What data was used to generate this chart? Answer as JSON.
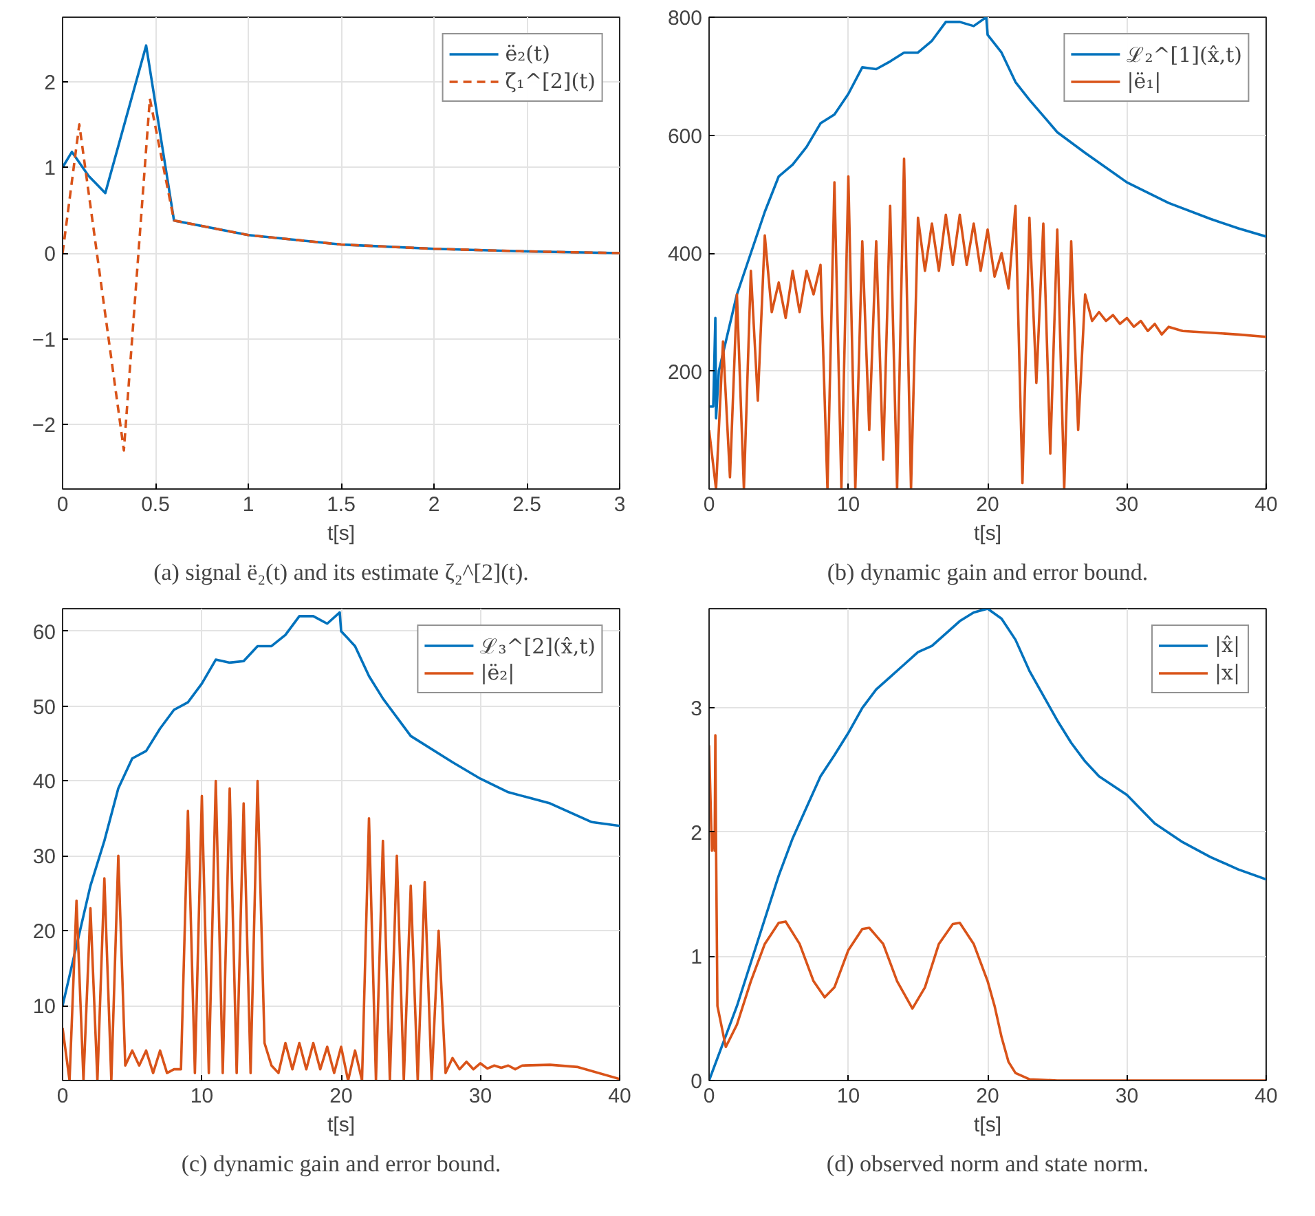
{
  "chart_data": [
    {
      "type": "line",
      "title": "(a) signal ë₂(t) and its estimate ζ₂^[2](t).",
      "xlabel": "t[s]",
      "xlim": [
        0,
        3
      ],
      "ylim": [
        -2.75,
        2.75
      ],
      "xticks": [
        0,
        0.5,
        1,
        1.5,
        2,
        2.5,
        3
      ],
      "yticks": [
        -2,
        -1,
        0,
        1,
        2
      ],
      "grid": true,
      "legend": "top right",
      "series": [
        {
          "name": "ë₂(t)",
          "color": "#0072bd",
          "line_style": "solid",
          "x": [
            0,
            0.05,
            0.14,
            0.23,
            0.45,
            0.6,
            1,
            1.5,
            2,
            2.5,
            3
          ],
          "values": [
            1.0,
            1.18,
            0.9,
            0.7,
            2.42,
            0.38,
            0.21,
            0.1,
            0.05,
            0.02,
            0.0
          ]
        },
        {
          "name": "ζ₁^[2](t)",
          "color": "#d95319",
          "line_style": "dashed",
          "x": [
            0,
            0.09,
            0.33,
            0.47,
            0.6,
            1,
            1.5,
            2,
            2.5,
            3
          ],
          "values": [
            0,
            1.5,
            -2.3,
            1.8,
            0.38,
            0.21,
            0.1,
            0.05,
            0.02,
            0.0
          ]
        }
      ]
    },
    {
      "type": "line",
      "title": "(b) dynamic gain and error bound.",
      "xlabel": "t[s]",
      "xlim": [
        0,
        40
      ],
      "ylim": [
        0,
        800
      ],
      "xticks": [
        0,
        10,
        20,
        30,
        40
      ],
      "yticks": [
        200,
        400,
        600,
        800
      ],
      "grid": true,
      "legend": "top right",
      "series": [
        {
          "name": "ℒ₂^[1](x̂,t)",
          "color": "#0072bd",
          "x": [
            0,
            0.3,
            0.45,
            0.5,
            0.7,
            2,
            3,
            4,
            5,
            6,
            7,
            8,
            9,
            10,
            11,
            12,
            13,
            14,
            15,
            16,
            17,
            18,
            19,
            19.9,
            20,
            21,
            22,
            23,
            25,
            27,
            30,
            33,
            36,
            38,
            40
          ],
          "values": [
            140,
            140,
            290,
            120,
            200,
            330,
            400,
            470,
            530,
            550,
            580,
            620,
            635,
            670,
            715,
            712,
            725,
            740,
            740,
            760,
            792,
            792,
            785,
            800,
            770,
            740,
            690,
            660,
            605,
            570,
            520,
            485,
            458,
            442,
            428
          ]
        },
        {
          "name": "|ë₁|",
          "color": "#d95319",
          "x": [
            0,
            0.5,
            1,
            1.5,
            2,
            2.5,
            3,
            3.5,
            4,
            4.5,
            5,
            5.5,
            6,
            6.5,
            7,
            7.5,
            8,
            8.5,
            9,
            9.5,
            10,
            10.5,
            11,
            11.5,
            12,
            12.5,
            13,
            13.5,
            14,
            14.5,
            15,
            15.5,
            16,
            16.5,
            17,
            17.5,
            18,
            18.5,
            19,
            19.5,
            20,
            20.5,
            21,
            21.5,
            22,
            22.5,
            23,
            23.5,
            24,
            24.5,
            25,
            25.5,
            26,
            26.5,
            27,
            27.5,
            28,
            28.5,
            29,
            29.5,
            30,
            30.5,
            31,
            31.5,
            32,
            32.5,
            33,
            34,
            36,
            38,
            40
          ],
          "values": [
            100,
            0,
            250,
            20,
            330,
            0,
            370,
            150,
            430,
            300,
            350,
            290,
            370,
            300,
            370,
            330,
            380,
            0,
            520,
            0,
            530,
            0,
            420,
            100,
            420,
            50,
            480,
            0,
            560,
            0,
            460,
            370,
            450,
            370,
            465,
            380,
            465,
            380,
            450,
            370,
            440,
            360,
            400,
            340,
            480,
            10,
            460,
            180,
            450,
            60,
            440,
            0,
            420,
            100,
            330,
            285,
            300,
            285,
            295,
            280,
            290,
            275,
            285,
            268,
            280,
            262,
            275,
            268,
            265,
            262,
            258
          ]
        }
      ]
    },
    {
      "type": "line",
      "title": "(c) dynamic gain and error bound.",
      "xlabel": "t[s]",
      "xlim": [
        0,
        40
      ],
      "ylim": [
        0,
        63
      ],
      "xticks": [
        0,
        10,
        20,
        30,
        40
      ],
      "yticks": [
        10,
        20,
        30,
        40,
        50,
        60
      ],
      "grid": true,
      "legend": "top right",
      "series": [
        {
          "name": "ℒ₃^[2](x̂,t)",
          "color": "#0072bd",
          "x": [
            0,
            0.5,
            1,
            2,
            3,
            4,
            5,
            6,
            7,
            8,
            9,
            10,
            11,
            12,
            13,
            14,
            15,
            16,
            17,
            18,
            19,
            19.9,
            20,
            21,
            22,
            23,
            25,
            28,
            30,
            32,
            35,
            38,
            40
          ],
          "values": [
            10,
            14,
            18,
            26,
            32,
            39,
            43,
            44,
            47,
            49.5,
            50.5,
            53,
            56.2,
            55.8,
            56,
            58,
            58,
            59.5,
            62,
            62,
            61,
            62.5,
            60,
            58,
            54,
            51,
            46,
            42.5,
            40.3,
            38.5,
            37,
            34.5,
            34
          ]
        },
        {
          "name": "|ë₂|",
          "color": "#d95319",
          "x": [
            0,
            0.5,
            1,
            1.5,
            2,
            2.5,
            3,
            3.5,
            4,
            4.5,
            5,
            5.5,
            6,
            6.5,
            7,
            7.5,
            8,
            8.5,
            9,
            9.5,
            10,
            10.5,
            11,
            11.5,
            12,
            12.5,
            13,
            13.5,
            14,
            14.5,
            15,
            15.5,
            16,
            16.5,
            17,
            17.5,
            18,
            18.5,
            19,
            19.5,
            20,
            20.5,
            21,
            21.5,
            22,
            22.5,
            23,
            23.5,
            24,
            24.5,
            25,
            25.5,
            26,
            26.5,
            27,
            27.5,
            28,
            28.5,
            29,
            29.5,
            30,
            30.5,
            31,
            31.5,
            32,
            32.5,
            33,
            35,
            37,
            40
          ],
          "values": [
            7,
            0,
            24,
            0,
            23,
            0,
            27,
            0,
            30,
            2,
            4,
            2,
            4,
            1,
            4,
            1,
            1.5,
            1.5,
            36,
            1,
            38,
            1,
            40,
            1,
            39,
            1,
            37,
            1,
            40,
            5,
            2,
            1,
            5,
            1.5,
            5,
            1.5,
            5,
            1.5,
            4.5,
            1,
            4.5,
            0,
            4,
            0,
            35,
            0,
            32,
            0,
            30,
            0,
            26,
            0,
            26.5,
            0,
            20,
            1,
            3,
            1.5,
            2.5,
            1.5,
            2.3,
            1.6,
            2,
            1.7,
            2,
            1.5,
            2,
            2.1,
            1.8,
            0.2
          ]
        }
      ]
    },
    {
      "type": "line",
      "title": "(d) observed norm and state norm.",
      "xlabel": "t[s]",
      "xlim": [
        0,
        40
      ],
      "ylim": [
        0,
        3.8
      ],
      "xticks": [
        0,
        10,
        20,
        30,
        40
      ],
      "yticks": [
        0,
        1,
        2,
        3
      ],
      "grid": true,
      "legend": "top right",
      "series": [
        {
          "name": "|x̂|",
          "color": "#0072bd",
          "x": [
            0,
            1,
            2,
            3,
            4,
            5,
            6,
            7,
            8,
            9,
            10,
            11,
            12,
            13,
            14,
            15,
            16,
            17,
            18,
            19,
            20,
            21,
            22,
            23,
            24,
            25,
            26,
            27,
            28,
            30,
            32,
            34,
            36,
            38,
            40
          ],
          "values": [
            0,
            0.3,
            0.6,
            0.95,
            1.3,
            1.65,
            1.95,
            2.2,
            2.45,
            2.62,
            2.8,
            3.0,
            3.15,
            3.25,
            3.35,
            3.45,
            3.5,
            3.6,
            3.7,
            3.77,
            3.8,
            3.72,
            3.55,
            3.3,
            3.1,
            2.9,
            2.72,
            2.57,
            2.45,
            2.3,
            2.07,
            1.92,
            1.8,
            1.7,
            1.62
          ]
        },
        {
          "name": "|x|",
          "color": "#d95319",
          "x": [
            0,
            0.2,
            0.35,
            0.4,
            0.45,
            0.5,
            0.6,
            1.2,
            2,
            3,
            4,
            5,
            5.5,
            6.5,
            7.5,
            8.3,
            9,
            10,
            11,
            11.5,
            12.5,
            13.5,
            14.6,
            15.5,
            16.5,
            17.5,
            18,
            19,
            20,
            20.5,
            21,
            21.5,
            22,
            23,
            25,
            30,
            40
          ],
          "values": [
            2.7,
            1.85,
            2.0,
            1.85,
            2.78,
            1.9,
            0.6,
            0.27,
            0.45,
            0.8,
            1.1,
            1.27,
            1.28,
            1.1,
            0.8,
            0.67,
            0.75,
            1.05,
            1.22,
            1.23,
            1.1,
            0.8,
            0.58,
            0.75,
            1.1,
            1.26,
            1.27,
            1.1,
            0.8,
            0.6,
            0.35,
            0.15,
            0.06,
            0.01,
            0.0,
            0.0,
            0.0
          ]
        }
      ]
    }
  ]
}
